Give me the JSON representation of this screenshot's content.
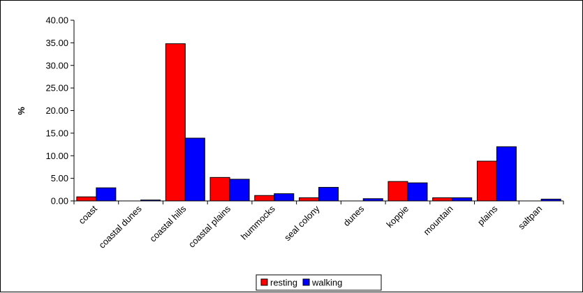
{
  "chart_data": {
    "type": "bar",
    "ylabel": "%",
    "ylim": [
      0,
      40
    ],
    "yticks": [
      "0.00",
      "5.00",
      "10.00",
      "15.00",
      "20.00",
      "25.00",
      "30.00",
      "35.00",
      "40.00"
    ],
    "categories": [
      "coast",
      "coastal dunes",
      "coastal hills",
      "coastal plains",
      "hummocks",
      "seal colony",
      "dunes",
      "koppie",
      "mountain",
      "plains",
      "saltpan"
    ],
    "series": [
      {
        "name": "resting",
        "color": "#ff0000",
        "values": [
          0.9,
          0.0,
          34.8,
          5.2,
          1.2,
          0.7,
          0.0,
          4.3,
          0.7,
          8.8,
          0.0
        ]
      },
      {
        "name": "walking",
        "color": "#0000ff",
        "values": [
          2.9,
          0.2,
          13.9,
          4.8,
          1.6,
          3.0,
          0.5,
          4.0,
          0.7,
          12.0,
          0.4
        ]
      }
    ],
    "grid": false,
    "legend_position": "bottom"
  }
}
